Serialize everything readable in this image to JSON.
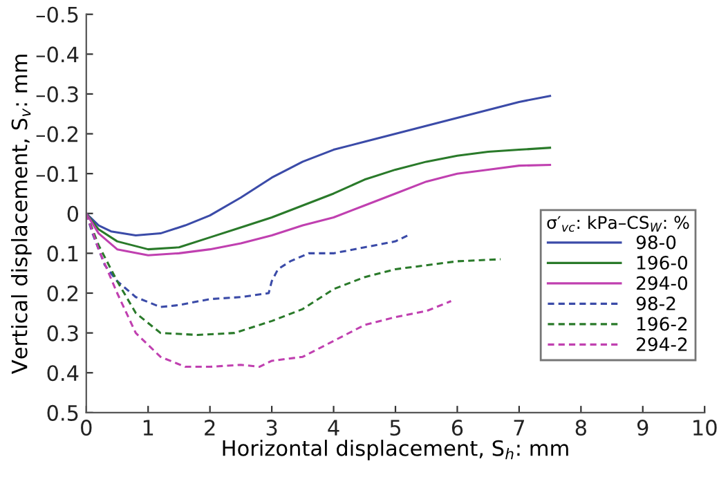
{
  "chart_data": {
    "type": "line",
    "xlabel": "Horizontal displacement, S$_{h}$: mm",
    "ylabel": "Vertical displacement, S$_{v}$: mm",
    "legend_title": "σ′$_{vc}$: kPa–CS$_{W}$: %",
    "legend": "right",
    "grid": false,
    "marker": "none",
    "xlim": [
      0,
      10
    ],
    "xticks": [
      0,
      1,
      2,
      3,
      4,
      5,
      6,
      7,
      8,
      9,
      10
    ],
    "ylim": [
      0.5,
      -0.5
    ],
    "yticks": [
      {
        "value": -0.5,
        "label": "–0.5"
      },
      {
        "value": -0.4,
        "label": "–0.4"
      },
      {
        "value": -0.3,
        "label": "–0.3"
      },
      {
        "value": -0.2,
        "label": "–0.2"
      },
      {
        "value": -0.1,
        "label": "–0.1"
      },
      0,
      0.1,
      0.2,
      0.3,
      0.4,
      0.5
    ],
    "series": [
      {
        "name": "98-0",
        "color": "#3b4ba8",
        "line_style": "solid",
        "x": [
          0,
          0.2,
          0.4,
          0.8,
          1.2,
          1.6,
          2.0,
          2.5,
          3,
          3.5,
          4,
          4.5,
          5,
          5.5,
          6,
          6.5,
          7,
          7.5
        ],
        "values": [
          0,
          0.03,
          0.045,
          0.055,
          0.05,
          0.03,
          0.005,
          -0.04,
          -0.09,
          -0.13,
          -0.16,
          -0.18,
          -0.2,
          -0.22,
          -0.24,
          -0.26,
          -0.28,
          -0.295
        ]
      },
      {
        "name": "196-0",
        "color": "#2a7a2a",
        "line_style": "solid",
        "x": [
          0,
          0.2,
          0.5,
          1,
          1.5,
          2,
          2.5,
          3,
          3.5,
          4,
          4.5,
          5,
          5.5,
          6,
          6.5,
          7,
          7.5
        ],
        "values": [
          0,
          0.04,
          0.07,
          0.09,
          0.085,
          0.06,
          0.035,
          0.01,
          -0.02,
          -0.05,
          -0.085,
          -0.11,
          -0.13,
          -0.145,
          -0.155,
          -0.16,
          -0.165
        ]
      },
      {
        "name": "294-0",
        "color": "#c040b0",
        "line_style": "solid",
        "x": [
          0,
          0.2,
          0.5,
          1,
          1.5,
          2,
          2.5,
          3,
          3.5,
          4,
          4.5,
          5,
          5.5,
          6,
          6.5,
          7,
          7.5
        ],
        "values": [
          0,
          0.05,
          0.09,
          0.105,
          0.1,
          0.09,
          0.075,
          0.055,
          0.03,
          0.01,
          -0.02,
          -0.05,
          -0.08,
          -0.1,
          -0.11,
          -0.12,
          -0.122
        ]
      },
      {
        "name": "98-2",
        "color": "#3b4ba8",
        "line_style": "dashed",
        "x": [
          0,
          0.1,
          0.2,
          0.3,
          0.5,
          0.8,
          1.2,
          1.5,
          2,
          2.5,
          2.95,
          3.0,
          3.1,
          3.3,
          3.6,
          4,
          4.5,
          5,
          5.2
        ],
        "values": [
          0,
          0.05,
          0.09,
          0.13,
          0.17,
          0.21,
          0.235,
          0.23,
          0.215,
          0.21,
          0.2,
          0.17,
          0.14,
          0.12,
          0.1,
          0.1,
          0.085,
          0.07,
          0.055
        ]
      },
      {
        "name": "196-2",
        "color": "#2a7a2a",
        "line_style": "dashed",
        "x": [
          0,
          0.2,
          0.5,
          0.8,
          1.2,
          1.8,
          2.4,
          3,
          3.5,
          4,
          4.5,
          5,
          5.5,
          6,
          6.7
        ],
        "values": [
          0,
          0.08,
          0.17,
          0.25,
          0.3,
          0.305,
          0.3,
          0.27,
          0.24,
          0.19,
          0.16,
          0.14,
          0.13,
          0.12,
          0.115
        ]
      },
      {
        "name": "294-2",
        "color": "#c040b0",
        "line_style": "dashed",
        "x": [
          0,
          0.2,
          0.5,
          0.8,
          1.2,
          1.6,
          2,
          2.5,
          2.8,
          3,
          3.5,
          4,
          4.5,
          5,
          5.5,
          5.9
        ],
        "values": [
          0,
          0.09,
          0.2,
          0.3,
          0.36,
          0.385,
          0.385,
          0.38,
          0.385,
          0.37,
          0.36,
          0.32,
          0.28,
          0.26,
          0.245,
          0.22
        ]
      }
    ]
  }
}
